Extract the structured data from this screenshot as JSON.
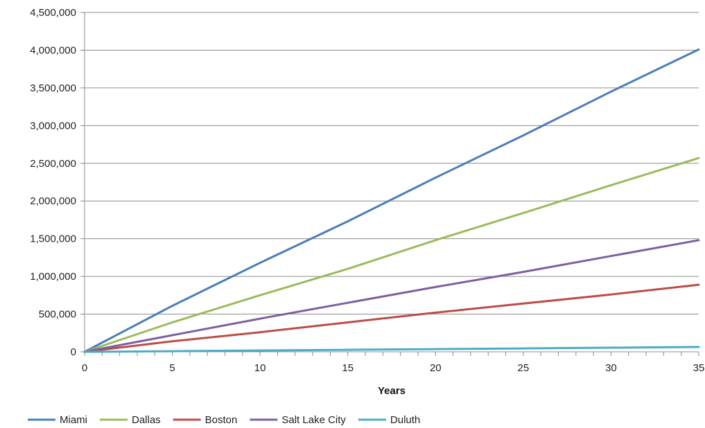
{
  "chart_data": {
    "type": "line",
    "xlabel": "Years",
    "ylabel": "",
    "xlim": [
      0,
      35
    ],
    "ylim": [
      0,
      4500000
    ],
    "x_ticks": [
      0,
      5,
      10,
      15,
      20,
      25,
      30,
      35
    ],
    "x_tick_labels": [
      "0",
      "5",
      "10",
      "15",
      "20",
      "25",
      "30",
      "35"
    ],
    "y_ticks": [
      0,
      500000,
      1000000,
      1500000,
      2000000,
      2500000,
      3000000,
      3500000,
      4000000,
      4500000
    ],
    "y_tick_labels": [
      "0",
      "500,000",
      "1,000,000",
      "1,500,000",
      "2,000,000",
      "2,500,000",
      "3,000,000",
      "3,500,000",
      "4,000,000",
      "4,500,000"
    ],
    "grid": "horizontal",
    "legend_position": "bottom-left",
    "x": [
      0,
      5,
      10,
      15,
      20,
      25,
      30,
      35
    ],
    "series": [
      {
        "name": "Miami",
        "color": "#4a7ebb",
        "values": [
          0,
          610000,
          1180000,
          1730000,
          2310000,
          2870000,
          3450000,
          4010000
        ]
      },
      {
        "name": "Dallas",
        "color": "#9bbb59",
        "values": [
          0,
          390000,
          750000,
          1100000,
          1480000,
          1840000,
          2210000,
          2570000
        ]
      },
      {
        "name": "Boston",
        "color": "#be4b48",
        "values": [
          0,
          140000,
          260000,
          390000,
          520000,
          640000,
          760000,
          890000
        ]
      },
      {
        "name": "Salt Lake City",
        "color": "#7d5fa0",
        "values": [
          0,
          220000,
          440000,
          650000,
          860000,
          1060000,
          1270000,
          1480000
        ]
      },
      {
        "name": "Duluth",
        "color": "#4bacc6",
        "values": [
          0,
          8000,
          18000,
          27000,
          36000,
          45000,
          55000,
          64000
        ]
      }
    ]
  }
}
